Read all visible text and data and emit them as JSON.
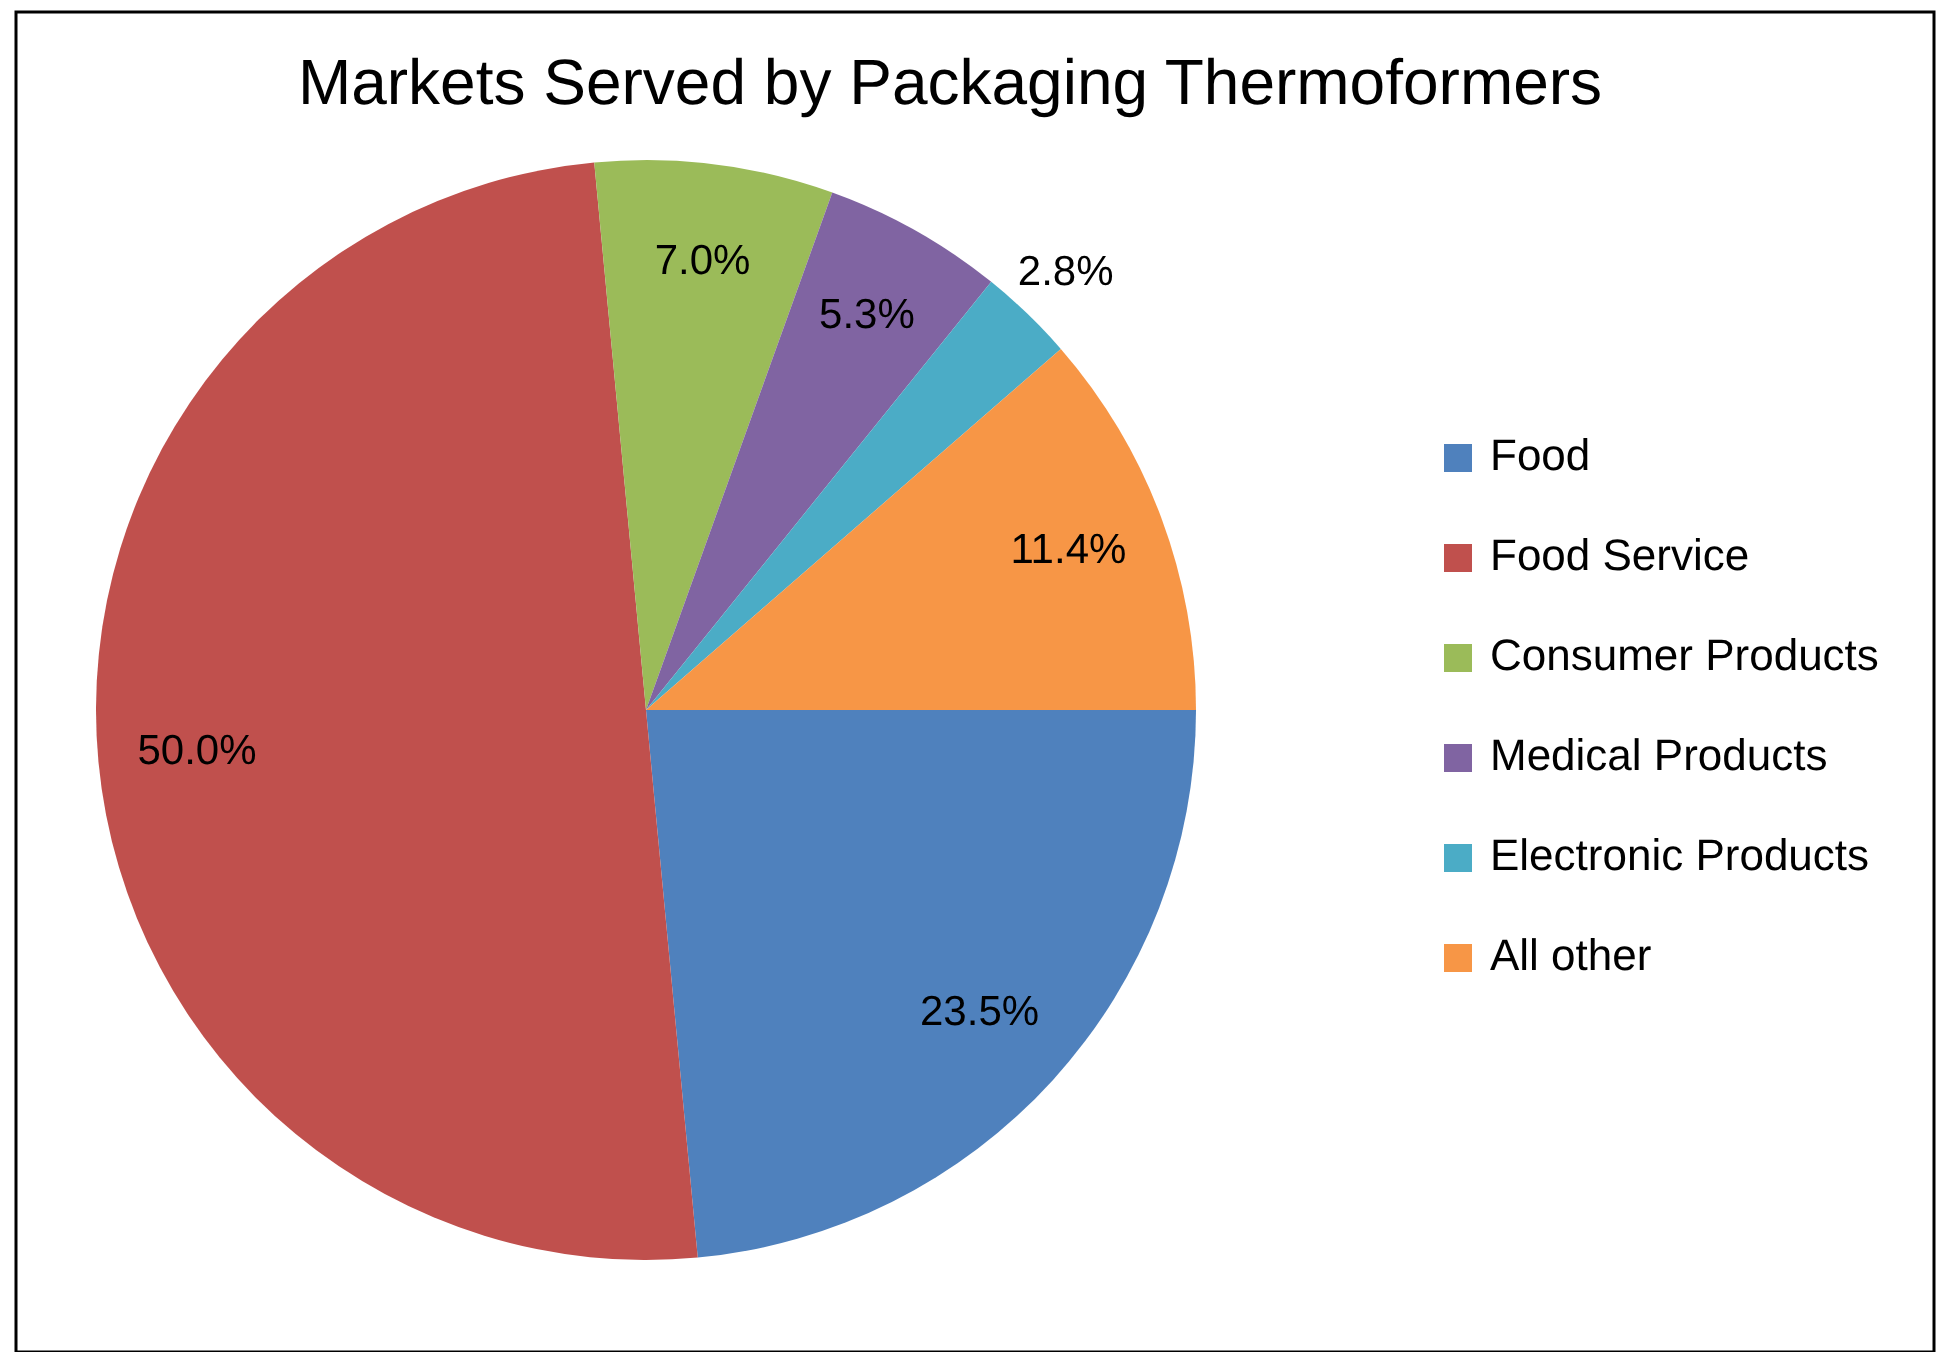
{
  "chart_data": {
    "type": "pie",
    "title": "Markets Served by Packaging Thermoformers",
    "categories": [
      "Food",
      "Food Service",
      "Consumer Products",
      "Medical Products",
      "Electronic Products",
      "All other"
    ],
    "values": [
      23.5,
      50.0,
      7.0,
      5.3,
      2.8,
      11.4
    ],
    "value_labels": [
      "23.5%",
      "50.0%",
      "7.0%",
      "5.3%",
      "2.8%",
      "11.4%"
    ],
    "colors": [
      "#4f81bd",
      "#c0504d",
      "#9bbb59",
      "#8064a2",
      "#4bacc6",
      "#f79646"
    ],
    "legend": "right"
  }
}
